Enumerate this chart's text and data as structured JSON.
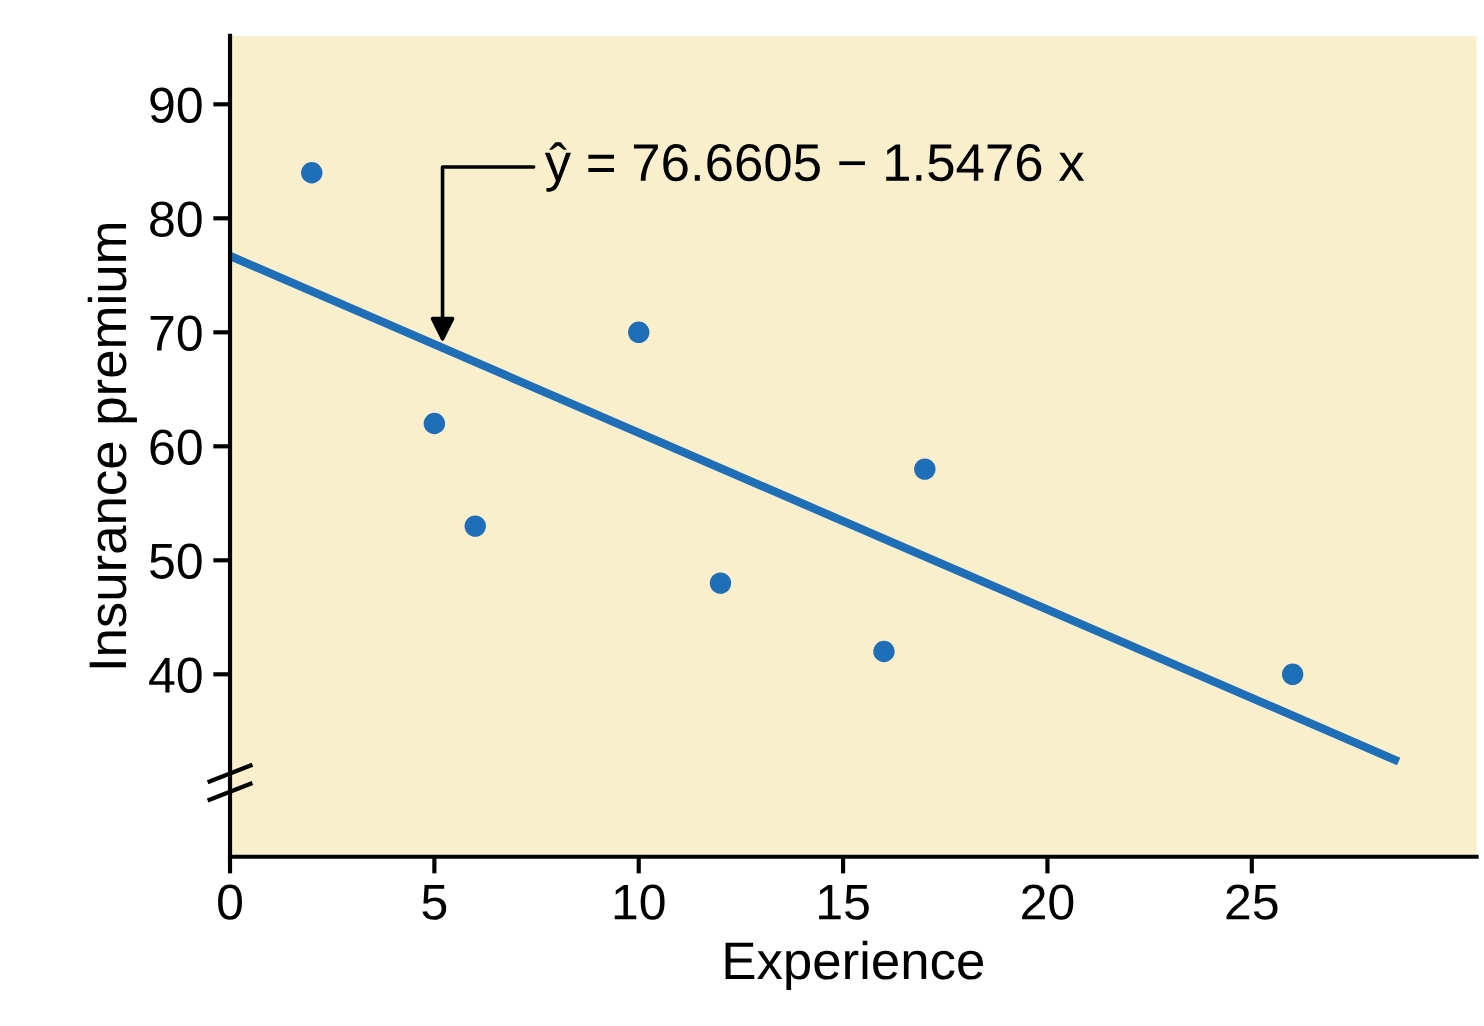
{
  "chart_data": {
    "type": "scatter",
    "xlabel": "Experience",
    "ylabel": "Insurance premium",
    "xlim": [
      0,
      30.5
    ],
    "ylim": [
      24,
      96
    ],
    "xticks": [
      0,
      5,
      10,
      15,
      20,
      25
    ],
    "yticks": [
      40,
      50,
      60,
      70,
      80,
      90
    ],
    "series": [
      {
        "color": "#1f6fb8",
        "marker": "circle",
        "x": [
          2,
          5,
          6,
          10,
          12,
          16,
          17,
          26
        ],
        "values": [
          84,
          62,
          53,
          70,
          48,
          42,
          58,
          40
        ]
      },
      {
        "type": "line",
        "color": "#1f6fb8",
        "x": [
          0,
          28.5
        ],
        "values": [
          76.7,
          32.5
        ]
      }
    ],
    "annotations": [
      {
        "text": "ŷ = 76.6605 − 1.5476 x",
        "x": 5.2,
        "y": 68.6
      }
    ],
    "grid": false,
    "legend": false
  }
}
